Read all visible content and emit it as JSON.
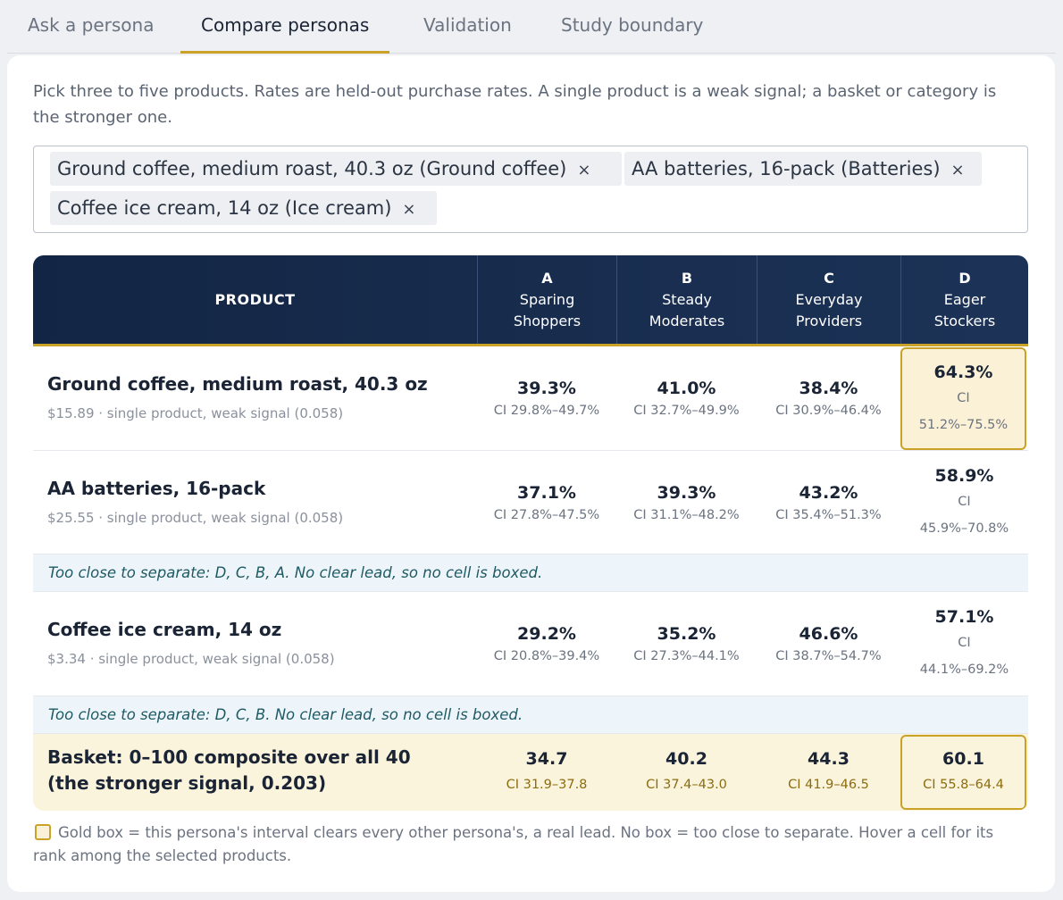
{
  "tabs": [
    {
      "label": "Ask a persona"
    },
    {
      "label": "Compare personas"
    },
    {
      "label": "Validation"
    },
    {
      "label": "Study boundary"
    }
  ],
  "intro": "Pick three to five products. Rates are held-out purchase rates. A single product is a weak signal; a basket or category is the stronger one.",
  "chips": [
    {
      "label": "Ground coffee, medium roast, 40.3 oz (Ground coffee)",
      "remove": "×"
    },
    {
      "label": "AA batteries, 16-pack (Batteries)",
      "remove": "×"
    },
    {
      "label": "Coffee ice cream, 14 oz (Ice cream)",
      "remove": "×"
    }
  ],
  "table": {
    "product_header": "PRODUCT",
    "personas": [
      {
        "letter": "A",
        "line1": "Sparing",
        "line2": "Shoppers"
      },
      {
        "letter": "B",
        "line1": "Steady",
        "line2": "Moderates"
      },
      {
        "letter": "C",
        "line1": "Everyday",
        "line2": "Providers"
      },
      {
        "letter": "D",
        "line1": "Eager",
        "line2": "Stockers"
      }
    ],
    "rows": [
      {
        "name": "Ground coffee, medium roast, 40.3 oz",
        "sub": "$15.89 · single product, weak signal (0.058)",
        "cells": [
          {
            "value": "39.3%",
            "ci": "CI 29.8%–49.7%"
          },
          {
            "value": "41.0%",
            "ci": "CI 32.7%–49.9%"
          },
          {
            "value": "38.4%",
            "ci": "CI 30.9%–46.4%"
          },
          {
            "value": "64.3%",
            "ci_label": "CI",
            "ci_range": "51.2%–75.5%"
          }
        ]
      },
      {
        "name": "AA batteries, 16-pack",
        "sub": "$25.55 · single product, weak signal (0.058)",
        "cells": [
          {
            "value": "37.1%",
            "ci": "CI 27.8%–47.5%"
          },
          {
            "value": "39.3%",
            "ci": "CI 31.1%–48.2%"
          },
          {
            "value": "43.2%",
            "ci": "CI 35.4%–51.3%"
          },
          {
            "value": "58.9%",
            "ci_label": "CI",
            "ci_range": "45.9%–70.8%"
          }
        ]
      },
      {
        "name": "Coffee ice cream, 14 oz",
        "sub": "$3.34 · single product, weak signal (0.058)",
        "cells": [
          {
            "value": "29.2%",
            "ci": "CI 20.8%–39.4%"
          },
          {
            "value": "35.2%",
            "ci": "CI 27.3%–44.1%"
          },
          {
            "value": "46.6%",
            "ci": "CI 38.7%–54.7%"
          },
          {
            "value": "57.1%",
            "ci_label": "CI",
            "ci_range": "44.1%–69.2%"
          }
        ]
      }
    ],
    "notes": [
      "Too close to separate: D, C, B, A. No clear lead, so no cell is boxed.",
      "Too close to separate: D, C, B. No clear lead, so no cell is boxed."
    ],
    "basket": {
      "name": "Basket: 0–100 composite over all 40 (the stronger signal, 0.203)",
      "cells": [
        {
          "value": "34.7",
          "ci": "CI 31.9–37.8"
        },
        {
          "value": "40.2",
          "ci": "CI 37.4–43.0"
        },
        {
          "value": "44.3",
          "ci": "CI 41.9–46.5"
        },
        {
          "value": "60.1",
          "ci": "CI 55.8–64.4"
        }
      ]
    }
  },
  "legend": "Gold box = this persona's interval clears every other persona's, a real lead. No box = too close to separate. Hover a cell for its rank among the selected products.",
  "colors": {
    "accent_gold": "#c9a227",
    "header_navy": "#132544",
    "note_teal": "#1d5a64"
  }
}
